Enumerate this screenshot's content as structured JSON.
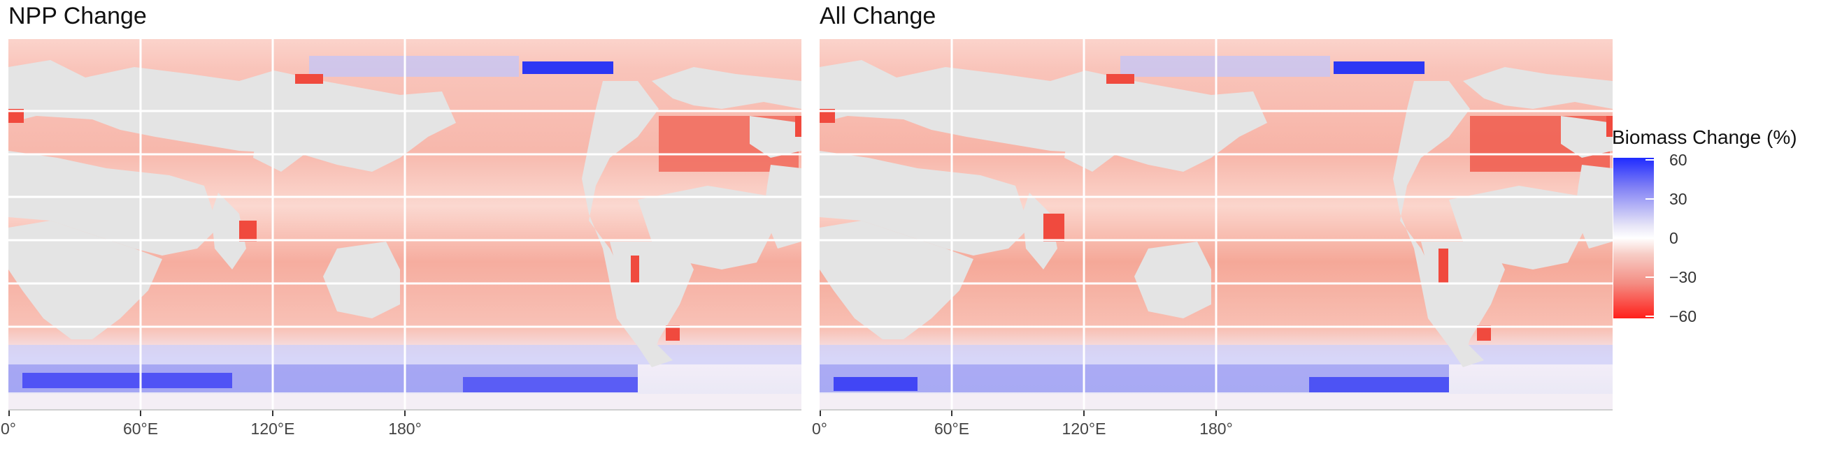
{
  "panels": [
    {
      "title": "NPP Change"
    },
    {
      "title": "All Change"
    }
  ],
  "x_axis": {
    "ticks": [
      {
        "label": "0°",
        "lon": 0
      },
      {
        "label": "60°E",
        "lon": 60
      },
      {
        "label": "120°E",
        "lon": 120
      },
      {
        "label": "180°",
        "lon": 180
      }
    ]
  },
  "legend": {
    "title": "Biomass Change (%)",
    "range": [
      -60,
      60
    ],
    "ticks": [
      {
        "label": "60",
        "value": 60
      },
      {
        "label": "30",
        "value": 30
      },
      {
        "label": "0",
        "value": 0
      },
      {
        "label": "−30",
        "value": -30
      },
      {
        "label": "−60",
        "value": -60
      }
    ]
  },
  "colors": {
    "land": "#e4e4e4",
    "gridline": "#ffffff",
    "ocean_base": "#f6b6aa",
    "strong_decline": "#f0413a",
    "increase": "#5a5cf0",
    "strong_increase": "#1f2bff"
  }
}
